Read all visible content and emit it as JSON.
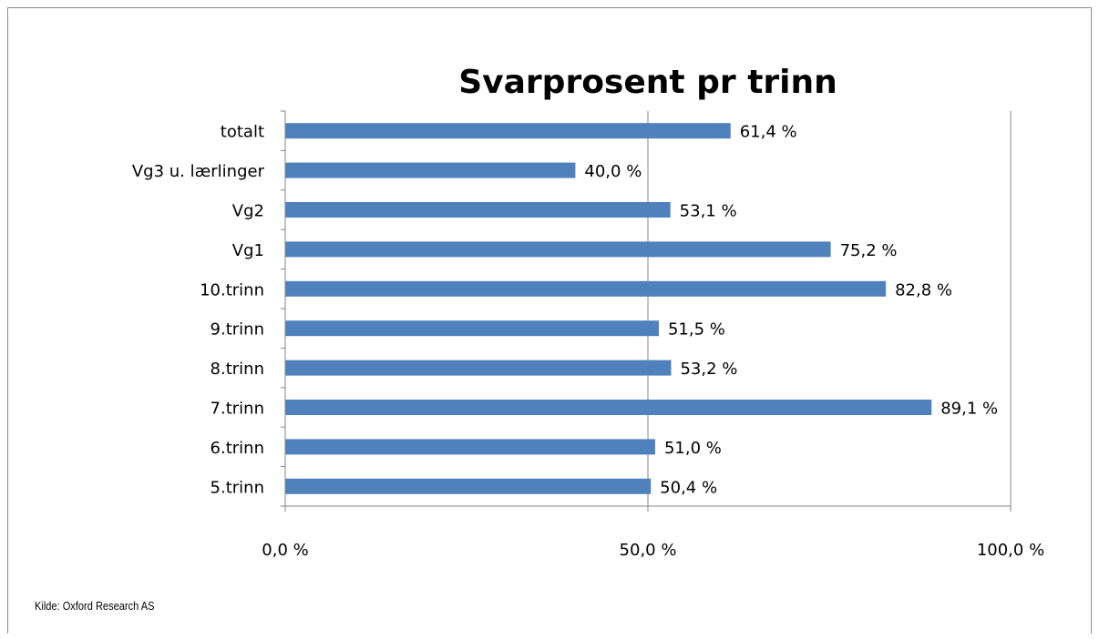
{
  "chart_data": {
    "type": "bar",
    "orientation": "horizontal",
    "title": "Svarprosent pr trinn",
    "categories": [
      "totalt",
      "Vg3 u. lærlinger",
      "Vg2",
      "Vg1",
      "10.trinn",
      "9.trinn",
      "8.trinn",
      "7.trinn",
      "6.trinn",
      "5.trinn"
    ],
    "values": [
      61.4,
      40.0,
      53.1,
      75.2,
      82.8,
      51.5,
      53.2,
      89.1,
      51.0,
      50.4
    ],
    "value_labels": [
      "61,4 %",
      "40,0 %",
      "53,1 %",
      "75,2 %",
      "82,8 %",
      "51,5 %",
      "53,2 %",
      "89,1 %",
      "51,0 %",
      "50,4 %"
    ],
    "xlim": [
      0,
      100
    ],
    "x_ticks": [
      0,
      50,
      100
    ],
    "x_tick_labels": [
      "0,0 %",
      "50,0 %",
      "100,0 %"
    ],
    "xlabel": "",
    "ylabel": "",
    "grid": "vertical major gridlines",
    "legend": "none",
    "bar_color": "#4f81bd",
    "gridline_color": "#868686"
  },
  "source": "Kilde: Oxford Research AS"
}
